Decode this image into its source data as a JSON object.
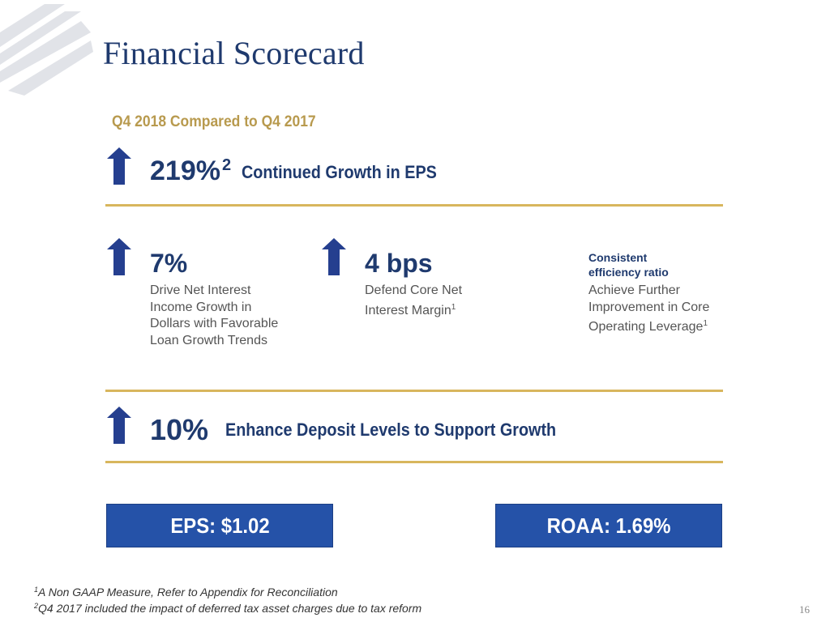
{
  "header": {
    "title": "Financial Scorecard"
  },
  "subtitle": "Q4 2018 Compared to Q4 2017",
  "colors": {
    "navy": "#1f3a6e",
    "gold": "#b89a4e",
    "rule_gold": "#d8b65d",
    "box_blue": "#2552a8",
    "arrow_blue": "#253f8f"
  },
  "metrics": {
    "eps_growth": {
      "value": "219%",
      "footnote_ref": "2",
      "label": "Continued Growth in EPS",
      "icon": "up-arrow-icon"
    },
    "nii_growth": {
      "value": "7%",
      "description": "Drive Net Interest Income Growth in Dollars with Favorable Loan Growth Trends",
      "icon": "up-arrow-icon"
    },
    "margin": {
      "value": "4 bps",
      "description": "Defend Core Net Interest Margin",
      "footnote_ref": "1",
      "icon": "up-arrow-icon"
    },
    "efficiency": {
      "value_line1": "Consistent",
      "value_line2": "efficiency ratio",
      "description": "Achieve Further Improvement in Core Operating Leverage",
      "footnote_ref": "1"
    },
    "deposits": {
      "value": "10%",
      "label": "Enhance Deposit Levels to Support Growth",
      "icon": "up-arrow-icon"
    }
  },
  "boxes": {
    "eps": "EPS: $1.02",
    "roaa": "ROAA: 1.69%"
  },
  "footnotes": [
    {
      "ref": "1",
      "text": "A Non GAAP Measure,  Refer to Appendix for Reconciliation"
    },
    {
      "ref": "2",
      "text": "Q4 2017 included the impact of deferred tax asset charges due to tax reform"
    }
  ],
  "page_number": "16"
}
